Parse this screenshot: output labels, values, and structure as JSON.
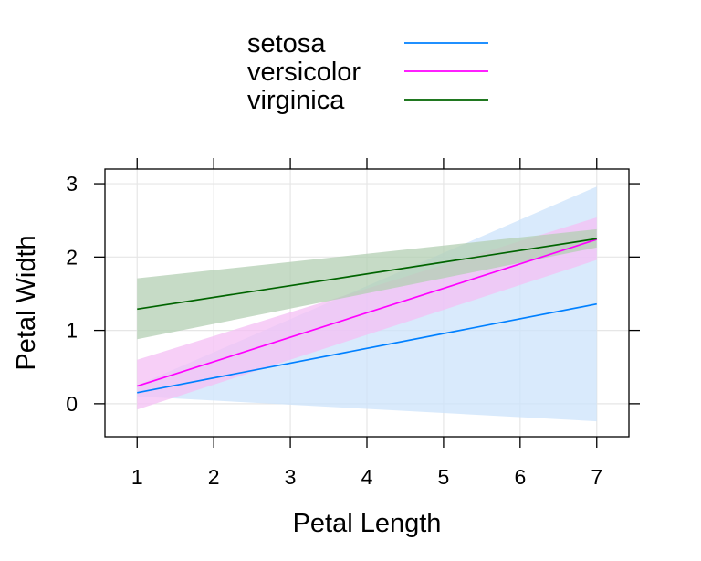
{
  "chart_data": {
    "type": "line",
    "xlabel": "Petal Length",
    "ylabel": "Petal Width",
    "xlim": [
      0.58,
      7.42
    ],
    "ylim": [
      -0.45,
      3.2
    ],
    "xticks": [
      1,
      2,
      3,
      4,
      5,
      6,
      7
    ],
    "yticks": [
      0,
      1,
      2,
      3
    ],
    "grid": true,
    "legend_position": "top",
    "series": [
      {
        "name": "setosa",
        "color": "#0080ff",
        "band_color": "#cce3fb",
        "x": [
          1,
          7
        ],
        "y": [
          0.15,
          1.36
        ],
        "lower": [
          0.1,
          -0.24
        ],
        "upper": [
          0.25,
          2.96
        ]
      },
      {
        "name": "versicolor",
        "color": "#ff00ff",
        "band_color": "#f4bff4",
        "x": [
          1,
          7
        ],
        "y": [
          0.24,
          2.24
        ],
        "lower": [
          -0.08,
          1.96
        ],
        "upper": [
          0.6,
          2.54
        ]
      },
      {
        "name": "virginica",
        "color": "#006400",
        "band_color": "#b3cfb3",
        "x": [
          1,
          7
        ],
        "y": [
          1.29,
          2.25
        ],
        "lower": [
          0.88,
          2.13
        ],
        "upper": [
          1.71,
          2.38
        ]
      }
    ]
  }
}
